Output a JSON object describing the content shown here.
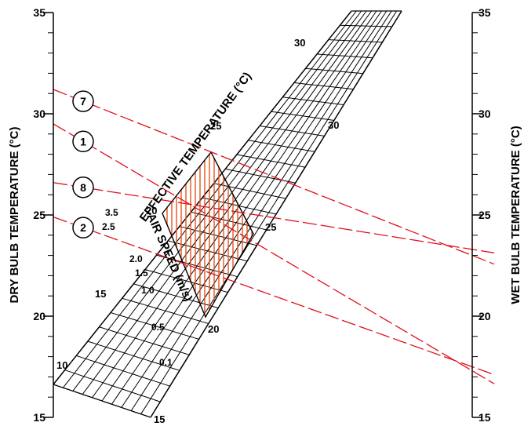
{
  "left_axis": {
    "title": "DRY BULB TEMPERATURE (°C)",
    "ticks": [
      {
        "value": 15,
        "label": "15"
      },
      {
        "value": 20,
        "label": "20"
      },
      {
        "value": 25,
        "label": "25"
      },
      {
        "value": 30,
        "label": "30"
      },
      {
        "value": 35,
        "label": "35"
      }
    ]
  },
  "right_axis": {
    "title": "WET BULB TEMPERATURE (°C)",
    "ticks": [
      {
        "value": 15,
        "label": "15"
      },
      {
        "value": 20,
        "label": "20"
      },
      {
        "value": 25,
        "label": "25"
      },
      {
        "value": 30,
        "label": "30"
      },
      {
        "value": 35,
        "label": "35"
      }
    ]
  },
  "effective_temperature": {
    "title": "EFFECTIVE TEMPERATURE (°C)",
    "labels": [
      "10",
      "15",
      "15",
      "20",
      "20",
      "25",
      "25",
      "30",
      "30"
    ]
  },
  "air_speed": {
    "title": "AIR SPEED (m/s)",
    "labels": [
      "3.5",
      "2.5",
      "2.0",
      "1.5",
      "1.0",
      "0.5",
      "0.1"
    ]
  },
  "comfort_zone": {
    "color": "#e8541e"
  },
  "cases": [
    {
      "label": "7",
      "dry_bulb": 31.2,
      "wet_bulb": 23.0
    },
    {
      "label": "1",
      "dry_bulb": 29.5,
      "wet_bulb": 17.3
    },
    {
      "label": "8",
      "dry_bulb": 26.6,
      "wet_bulb": 23.3
    },
    {
      "label": "2",
      "dry_bulb": 24.9,
      "wet_bulb": 17.5
    }
  ],
  "case_line_color": "#e0101a"
}
